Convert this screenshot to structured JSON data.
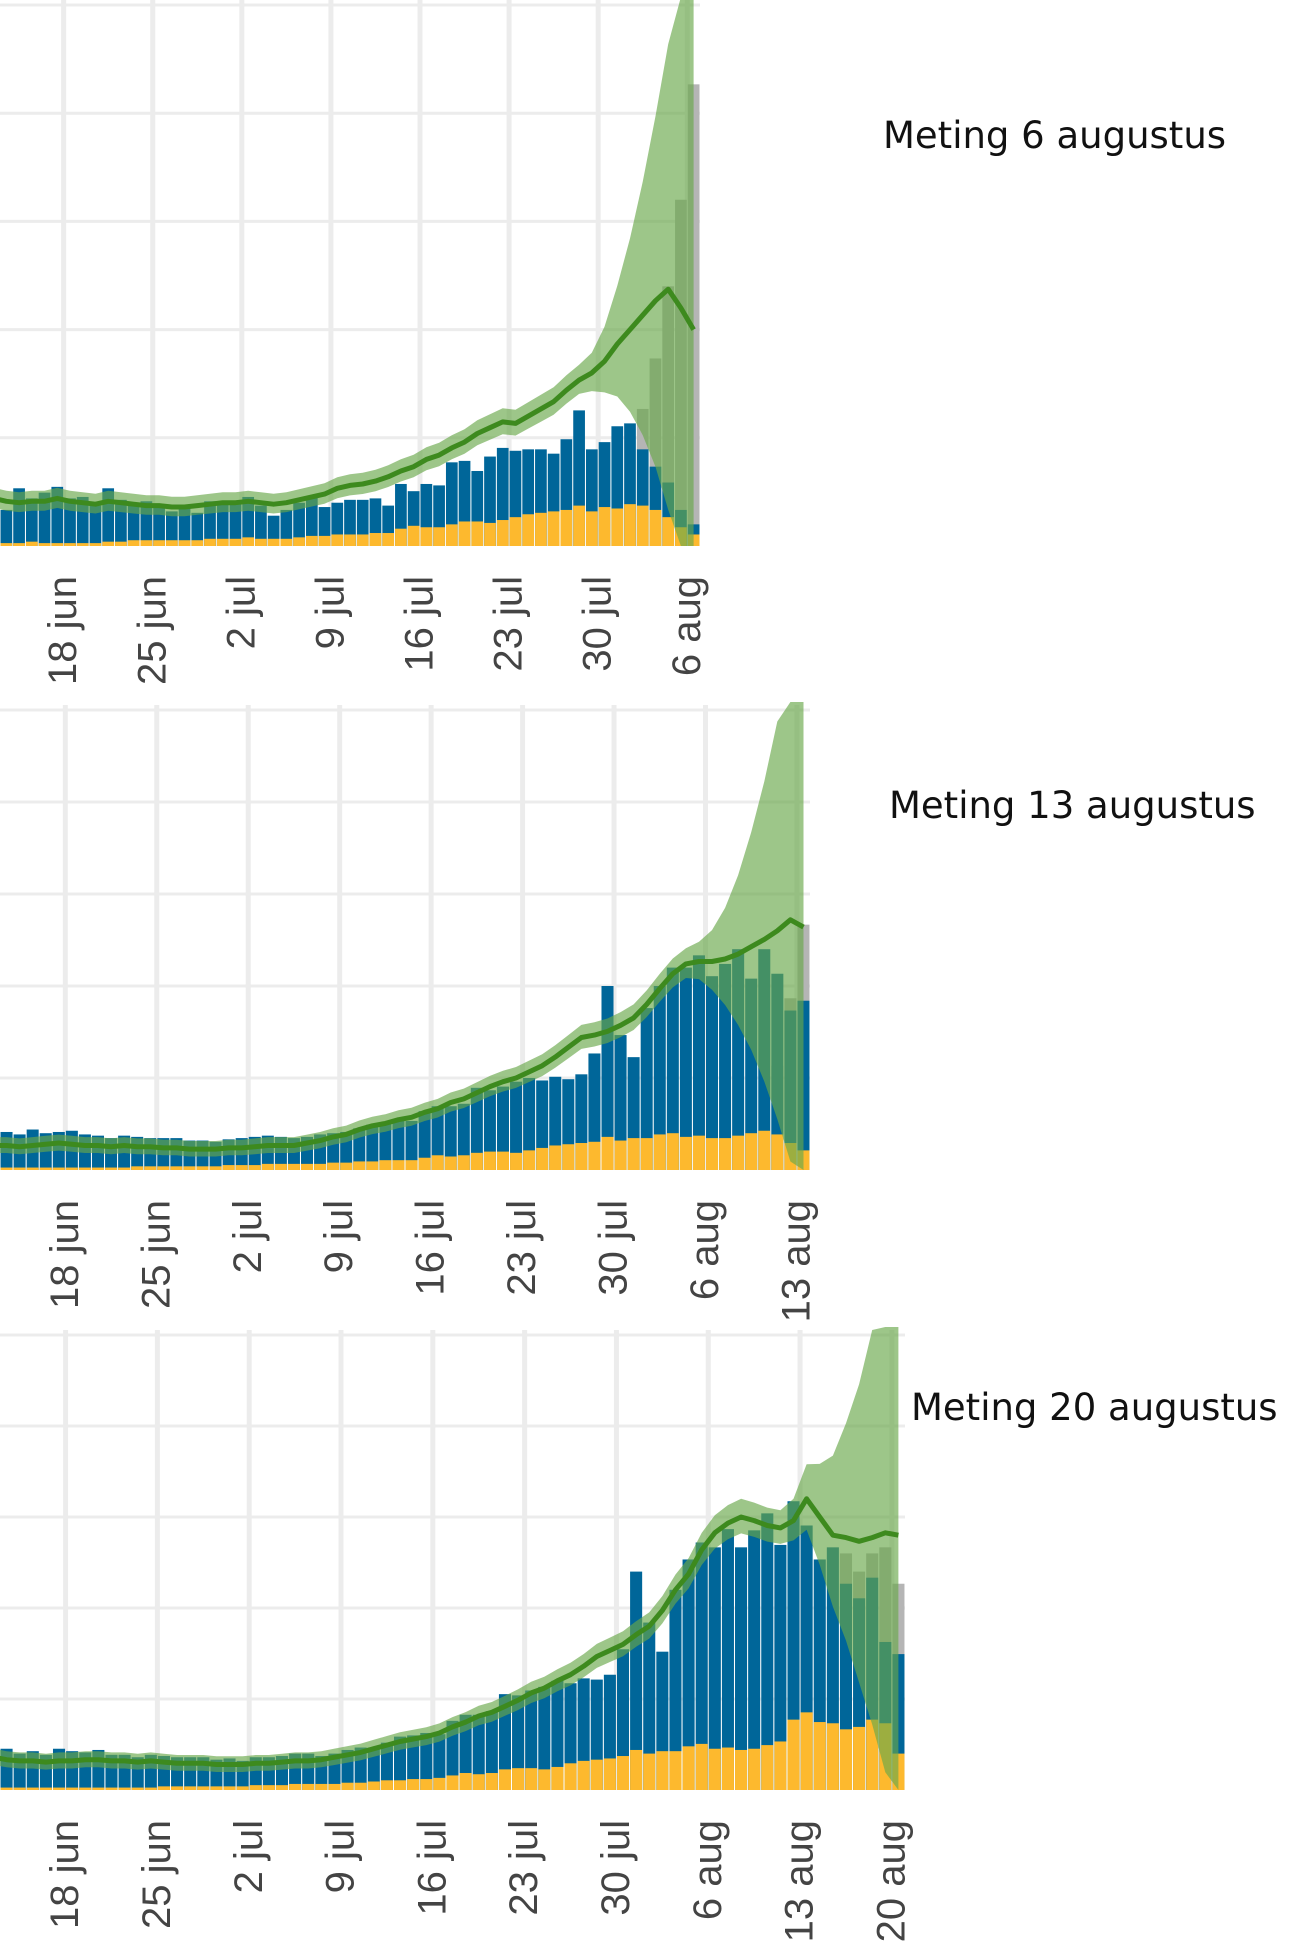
{
  "colors": {
    "blue": "#006699",
    "yellow": "#fdb92e",
    "green": "#3d8a1e",
    "band": "#69a84a",
    "grey": "#b5b5b5",
    "grid": "#ececec"
  },
  "chart_data": [
    {
      "type": "bar",
      "title": "Meting 6 augustus",
      "xlabel": "",
      "ylabel": "",
      "ylim": [
        0,
        375
      ],
      "grid": true,
      "legend": "none",
      "x_start": "2021-06-13",
      "x_end": "2021-08-07",
      "xticks": [
        "18 jun",
        "25 jun",
        "2 jul",
        "9 jul",
        "16 jul",
        "23 jul",
        "30 jul",
        "6 aug"
      ],
      "series": [
        {
          "type": "bar",
          "values": [
            48,
            41,
            53,
            35,
            31,
            35,
            25,
            40,
            33,
            37,
            41,
            33,
            34,
            28,
            40,
            32,
            30,
            31,
            28,
            24,
            28,
            23,
            31,
            30,
            31,
            34,
            28,
            21,
            25,
            30,
            34,
            27,
            30,
            32,
            32,
            33,
            28,
            43,
            38,
            43,
            42,
            58,
            59,
            52,
            62,
            68,
            66,
            67,
            67,
            64,
            74,
            94,
            67,
            72,
            83,
            85,
            67,
            55,
            44,
            25,
            15
          ]
        },
        {
          "type": "bar",
          "values": [
            1,
            2,
            3,
            2,
            2,
            3,
            2,
            2,
            3,
            2,
            2,
            2,
            2,
            2,
            3,
            3,
            4,
            4,
            4,
            4,
            4,
            4,
            5,
            5,
            5,
            6,
            5,
            5,
            5,
            6,
            7,
            7,
            8,
            8,
            8,
            9,
            9,
            12,
            14,
            13,
            13,
            15,
            17,
            17,
            16,
            18,
            20,
            22,
            23,
            24,
            25,
            28,
            24,
            27,
            26,
            29,
            28,
            25,
            20,
            13,
            8
          ]
        },
        {
          "type": "line",
          "values": [
            40,
            41,
            37,
            34,
            32,
            33,
            31,
            30,
            31,
            31,
            33,
            31,
            30,
            29,
            31,
            30,
            29,
            28,
            28,
            27,
            27,
            28,
            29,
            30,
            30,
            31,
            30,
            29,
            30,
            32,
            34,
            36,
            40,
            42,
            43,
            45,
            48,
            52,
            55,
            60,
            63,
            68,
            72,
            78,
            82,
            86,
            85,
            90,
            95,
            100,
            108,
            115,
            120,
            128,
            140,
            150,
            160,
            170,
            178,
            165,
            150
          ]
        },
        {
          "type": "bar",
          "values": [
            0,
            0,
            0,
            0,
            0,
            0,
            0,
            0,
            0,
            0,
            0,
            0,
            0,
            0,
            0,
            0,
            0,
            0,
            0,
            0,
            0,
            0,
            0,
            0,
            0,
            0,
            0,
            0,
            0,
            0,
            0,
            0,
            0,
            0,
            0,
            0,
            0,
            0,
            0,
            0,
            0,
            0,
            0,
            0,
            0,
            0,
            0,
            0,
            0,
            0,
            0,
            0,
            0,
            0,
            0,
            0,
            95,
            130,
            180,
            240,
            320
          ]
        }
      ]
    },
    {
      "type": "bar",
      "title": "Meting 13 augustus",
      "xlabel": "",
      "ylabel": "",
      "ylim": [
        0,
        375
      ],
      "grid": true,
      "legend": "none",
      "x_start": "2021-06-13",
      "x_end": "2021-08-14",
      "xticks": [
        "18 jun",
        "25 jun",
        "2 jul",
        "9 jul",
        "16 jul",
        "23 jul",
        "30 jul",
        "6 aug",
        "13 aug"
      ],
      "series": [
        {
          "type": "bar",
          "values": [
            36,
            33,
            34,
            30,
            28,
            31,
            29,
            33,
            30,
            31,
            32,
            29,
            28,
            26,
            28,
            27,
            26,
            26,
            26,
            24,
            24,
            23,
            25,
            26,
            27,
            28,
            27,
            26,
            27,
            29,
            30,
            31,
            34,
            37,
            38,
            40,
            40,
            48,
            52,
            52,
            54,
            67,
            65,
            68,
            72,
            75,
            73,
            76,
            74,
            78,
            95,
            150,
            110,
            92,
            132,
            150,
            165,
            165,
            175,
            158,
            168,
            180,
            156,
            180,
            160,
            130,
            138
          ]
        },
        {
          "type": "bar",
          "values": [
            1,
            2,
            2,
            2,
            2,
            2,
            2,
            2,
            2,
            2,
            2,
            2,
            2,
            2,
            2,
            3,
            3,
            3,
            3,
            3,
            3,
            3,
            4,
            4,
            4,
            5,
            5,
            5,
            5,
            5,
            6,
            6,
            7,
            7,
            8,
            8,
            8,
            10,
            12,
            11,
            12,
            14,
            15,
            15,
            14,
            16,
            18,
            20,
            21,
            22,
            23,
            27,
            24,
            26,
            26,
            29,
            30,
            27,
            28,
            26,
            26,
            28,
            30,
            32,
            29,
            22,
            16
          ]
        },
        {
          "type": "line",
          "values": [
            26,
            25,
            22,
            21,
            20,
            20,
            19,
            20,
            21,
            22,
            21,
            20,
            20,
            19,
            20,
            19,
            19,
            18,
            18,
            17,
            17,
            17,
            18,
            18,
            19,
            20,
            20,
            20,
            22,
            24,
            27,
            29,
            33,
            36,
            38,
            41,
            43,
            47,
            50,
            55,
            58,
            63,
            68,
            72,
            75,
            80,
            85,
            92,
            100,
            108,
            110,
            113,
            118,
            124,
            135,
            148,
            160,
            168,
            170,
            170,
            172,
            176,
            182,
            188,
            195,
            204,
            198
          ]
        },
        {
          "type": "bar",
          "values": [
            0,
            0,
            0,
            0,
            0,
            0,
            0,
            0,
            0,
            0,
            0,
            0,
            0,
            0,
            0,
            0,
            0,
            0,
            0,
            0,
            0,
            0,
            0,
            0,
            0,
            0,
            0,
            0,
            0,
            0,
            0,
            0,
            0,
            0,
            0,
            0,
            0,
            0,
            0,
            0,
            0,
            0,
            0,
            0,
            0,
            0,
            0,
            0,
            0,
            0,
            0,
            0,
            0,
            0,
            0,
            0,
            0,
            0,
            0,
            0,
            0,
            0,
            0,
            0,
            85,
            140,
            200
          ]
        }
      ]
    },
    {
      "type": "bar",
      "title": "Meting 20 augustus",
      "xlabel": "",
      "ylabel": "",
      "ylim": [
        0,
        375
      ],
      "grid": true,
      "legend": "none",
      "x_start": "2021-06-13",
      "x_end": "2021-08-21",
      "xticks": [
        "18 jun",
        "25 jun",
        "2 jul",
        "9 jul",
        "16 jul",
        "23 jul",
        "30 jul",
        "6 aug",
        "13 aug",
        "20 aug"
      ],
      "series": [
        {
          "type": "bar",
          "values": [
            38,
            36,
            36,
            34,
            30,
            32,
            29,
            34,
            32,
            31,
            33,
            29,
            29,
            27,
            29,
            28,
            27,
            27,
            27,
            25,
            26,
            24,
            27,
            27,
            28,
            30,
            30,
            28,
            30,
            33,
            35,
            35,
            39,
            44,
            45,
            47,
            46,
            57,
            62,
            62,
            65,
            79,
            78,
            82,
            85,
            90,
            88,
            92,
            91,
            95,
            116,
            180,
            138,
            114,
            165,
            190,
            204,
            200,
            215,
            200,
            214,
            228,
            202,
            238,
            218,
            190,
            200,
            170,
            158,
            175,
            122,
            112
          ]
        },
        {
          "type": "bar",
          "values": [
            1,
            2,
            2,
            2,
            2,
            2,
            2,
            2,
            2,
            2,
            2,
            2,
            2,
            2,
            2,
            3,
            3,
            3,
            3,
            3,
            3,
            3,
            4,
            4,
            4,
            5,
            5,
            5,
            5,
            6,
            6,
            7,
            8,
            8,
            9,
            9,
            10,
            12,
            14,
            13,
            14,
            17,
            18,
            18,
            17,
            19,
            22,
            24,
            25,
            26,
            28,
            33,
            30,
            32,
            32,
            36,
            38,
            34,
            35,
            33,
            34,
            37,
            40,
            58,
            64,
            56,
            55,
            50,
            52,
            58,
            55,
            30
          ]
        },
        {
          "type": "line",
          "values": [
            30,
            29,
            27,
            25,
            24,
            24,
            23,
            24,
            24,
            25,
            25,
            24,
            24,
            23,
            24,
            23,
            22,
            22,
            22,
            21,
            21,
            21,
            22,
            22,
            23,
            24,
            24,
            25,
            27,
            29,
            31,
            34,
            37,
            40,
            42,
            44,
            47,
            52,
            56,
            61,
            64,
            69,
            74,
            80,
            84,
            90,
            95,
            102,
            110,
            115,
            120,
            128,
            135,
            148,
            165,
            178,
            198,
            212,
            220,
            225,
            222,
            218,
            216,
            222,
            240,
            225,
            210,
            208,
            205,
            208,
            212,
            210
          ]
        },
        {
          "type": "bar",
          "values": [
            0,
            0,
            0,
            0,
            0,
            0,
            0,
            0,
            0,
            0,
            0,
            0,
            0,
            0,
            0,
            0,
            0,
            0,
            0,
            0,
            0,
            0,
            0,
            0,
            0,
            0,
            0,
            0,
            0,
            0,
            0,
            0,
            0,
            0,
            0,
            0,
            0,
            0,
            0,
            0,
            0,
            0,
            0,
            0,
            0,
            0,
            0,
            0,
            0,
            0,
            0,
            0,
            0,
            0,
            0,
            0,
            0,
            0,
            0,
            0,
            0,
            0,
            0,
            0,
            0,
            0,
            0,
            195,
            180,
            195,
            200,
            170
          ]
        }
      ]
    }
  ]
}
